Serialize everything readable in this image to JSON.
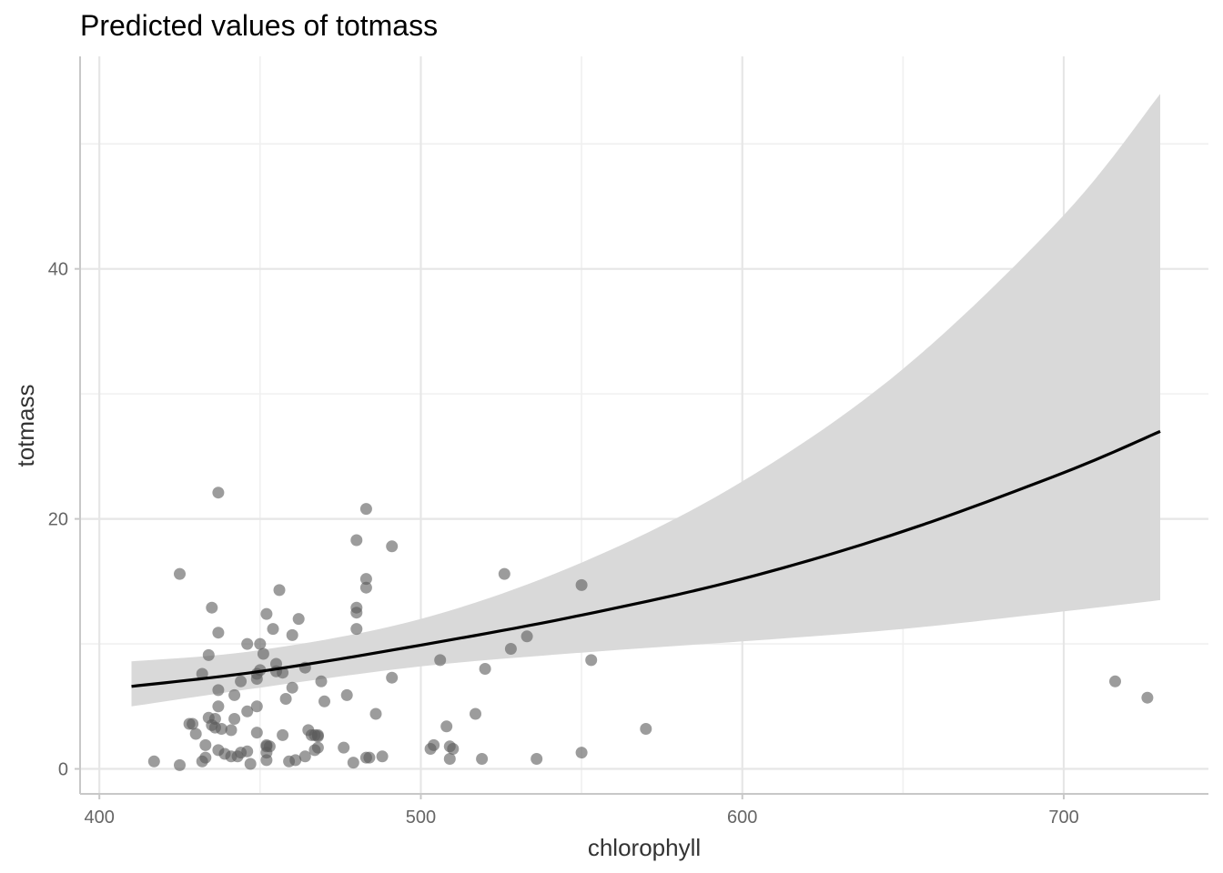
{
  "chart_data": {
    "type": "line",
    "title": "Predicted values of totmass",
    "xlabel": "chlorophyll",
    "ylabel": "totmass",
    "xlim": [
      394,
      745
    ],
    "ylim": [
      -2,
      57
    ],
    "x_ticks": [
      400,
      500,
      600,
      700
    ],
    "y_ticks": [
      0,
      20,
      40
    ],
    "x_minor": [
      450,
      550,
      650
    ],
    "y_minor": [
      10,
      30,
      50
    ],
    "grid": true,
    "legend": "none",
    "colors": {
      "line": "#000000",
      "ribbon": "#d9d9d9",
      "points": "#5a5a5a"
    },
    "series": [
      {
        "kind": "prediction-line",
        "x": [
          410,
          450,
          500,
          550,
          600,
          650,
          700,
          730
        ],
        "y": [
          6.6,
          7.8,
          9.9,
          12.3,
          15.2,
          19.0,
          23.7,
          27.0
        ]
      },
      {
        "kind": "confidence-band",
        "x": [
          410,
          450,
          500,
          550,
          600,
          650,
          700,
          730
        ],
        "lower": [
          5.0,
          6.5,
          8.2,
          9.3,
          10.2,
          11.2,
          12.6,
          13.5
        ],
        "upper": [
          8.6,
          9.5,
          12.0,
          16.5,
          23.0,
          32.0,
          44.3,
          54.0
        ]
      },
      {
        "kind": "observations",
        "x": [
          417,
          425,
          425,
          430,
          432,
          434,
          435,
          436,
          437,
          437,
          437,
          437,
          438,
          433,
          434,
          435,
          436,
          437,
          439,
          429,
          428,
          432,
          433,
          441,
          441,
          442,
          442,
          443,
          444,
          444,
          446,
          446,
          446,
          447,
          449,
          449,
          449,
          449,
          450,
          450,
          451,
          452,
          452,
          452,
          452,
          453,
          452,
          454,
          455,
          455,
          456,
          457,
          457,
          458,
          459,
          460,
          460,
          461,
          462,
          464,
          464,
          465,
          466,
          467,
          467,
          468,
          468,
          468,
          469,
          470,
          476,
          477,
          479,
          480,
          480,
          480,
          480,
          483,
          483,
          483,
          483,
          484,
          486,
          488,
          491,
          491,
          503,
          504,
          506,
          508,
          509,
          509,
          510,
          517,
          519,
          520,
          526,
          528,
          533,
          536,
          550,
          550,
          553,
          570,
          716,
          726
        ],
        "y": [
          0.6,
          0.3,
          15.6,
          2.8,
          7.6,
          4.1,
          12.9,
          3.3,
          22.1,
          5.0,
          6.3,
          10.9,
          3.2,
          1.9,
          9.1,
          3.5,
          4.0,
          1.5,
          1.2,
          3.6,
          3.6,
          0.6,
          0.9,
          1.0,
          3.1,
          4.0,
          5.9,
          1.0,
          7.0,
          1.3,
          10.0,
          4.6,
          1.4,
          0.4,
          7.2,
          2.9,
          5.0,
          7.6,
          7.9,
          10.0,
          9.2,
          12.4,
          1.9,
          1.3,
          0.7,
          1.8,
          1.8,
          11.2,
          8.4,
          7.8,
          14.3,
          7.7,
          2.7,
          5.6,
          0.6,
          10.7,
          6.5,
          0.7,
          12.0,
          8.1,
          1.0,
          3.1,
          2.7,
          1.5,
          2.7,
          1.7,
          2.7,
          2.6,
          7.0,
          5.4,
          1.7,
          5.9,
          0.5,
          12.9,
          11.2,
          18.3,
          12.5,
          15.2,
          14.5,
          20.8,
          0.9,
          0.9,
          4.4,
          1.0,
          17.8,
          7.3,
          1.6,
          1.9,
          8.7,
          3.4,
          0.8,
          1.8,
          1.6,
          4.4,
          0.8,
          8.0,
          15.6,
          9.6,
          10.6,
          0.8,
          14.7,
          1.3,
          8.7,
          3.2,
          7.0,
          5.7
        ]
      }
    ]
  }
}
